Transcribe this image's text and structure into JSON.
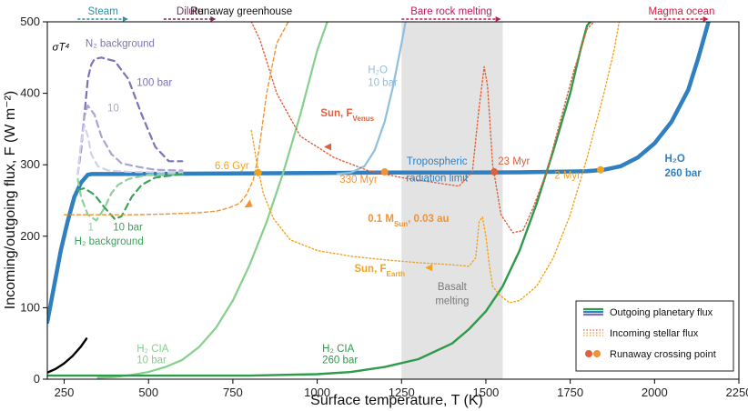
{
  "chart_data": {
    "type": "line",
    "xlabel": "Surface temperature, T (K)",
    "ylabel": "Incoming/outgoing flux, F (W m⁻²)",
    "xlim": [
      200,
      2250
    ],
    "ylim": [
      0,
      500
    ],
    "xticks": [
      250,
      500,
      750,
      1000,
      1250,
      1500,
      1750,
      2000,
      2250
    ],
    "yticks": [
      0,
      100,
      200,
      300,
      400,
      500
    ],
    "shaded_region": {
      "x": [
        1250,
        1550
      ],
      "label_line1": "Basalt",
      "label_line2": "melting",
      "color": "#e3e3e3"
    },
    "regimes": [
      {
        "label": "Steam",
        "x": [
          290,
          440
        ],
        "color": "#2e8fa6",
        "arrow": true
      },
      {
        "label": "Dilute",
        "x": [
          545,
          700
        ],
        "color": "#7b2b5a",
        "arrow": true
      },
      {
        "label": "Runaway greenhouse",
        "x": [
          775,
          775
        ],
        "color": "#111111",
        "arrow": false
      },
      {
        "label": "Bare rock melting",
        "x": [
          1250,
          1545
        ],
        "color": "#c2185b",
        "arrow": true
      },
      {
        "label": "Magma ocean",
        "x": [
          2000,
          2160
        ],
        "color": "#d81b44",
        "arrow": true
      }
    ],
    "series": [
      {
        "name": "sigma-T4",
        "label": "σT⁴",
        "color": "#000000",
        "width": 2.4,
        "dash": "",
        "x": [
          200,
          225,
          250,
          275,
          300,
          316
        ],
        "y": [
          9.1,
          14.5,
          22.1,
          32.4,
          45.9,
          56.8
        ]
      },
      {
        "name": "H2O 260 bar",
        "label": "H₂O 260 bar",
        "color": "#2f7fc1",
        "width": 4.5,
        "dash": "",
        "x": [
          200,
          220,
          240,
          260,
          280,
          300,
          320,
          330,
          400,
          600,
          800,
          1000,
          1200,
          1400,
          1600,
          1800,
          1850,
          1900,
          1950,
          2000,
          2050,
          2100,
          2130,
          2160
        ],
        "y": [
          80,
          130,
          180,
          220,
          255,
          275,
          286,
          287,
          287,
          287.5,
          288,
          288.5,
          289,
          289,
          289.5,
          291,
          293,
          298,
          310,
          330,
          360,
          405,
          450,
          500
        ]
      },
      {
        "name": "H2O 10 bar",
        "label": "H₂O 10 bar",
        "color": "#8fbfdf",
        "width": 2.2,
        "dash": "",
        "x": [
          1060,
          1100,
          1140,
          1170,
          1200,
          1225,
          1250,
          1262
        ],
        "y": [
          287,
          289,
          298,
          320,
          360,
          410,
          470,
          500
        ]
      },
      {
        "name": "H2 CIA 10 bar",
        "label": "H₂ CIA 10 bar",
        "color": "#86cf8c",
        "width": 2.2,
        "dash": "",
        "x": [
          350,
          400,
          450,
          500,
          550,
          600,
          650,
          700,
          750,
          800,
          850,
          900,
          950,
          1000,
          1030
        ],
        "y": [
          2,
          3,
          6,
          10,
          17,
          27,
          45,
          72,
          110,
          160,
          220,
          290,
          370,
          460,
          500
        ]
      },
      {
        "name": "H2 CIA 260 bar",
        "label": "H₂ CIA 260 bar",
        "color": "#2e9a4c",
        "width": 2.4,
        "dash": "",
        "x": [
          200,
          400,
          600,
          800,
          1000,
          1100,
          1200,
          1300,
          1400,
          1450,
          1500,
          1550,
          1600,
          1650,
          1700,
          1750,
          1780,
          1800,
          1810
        ],
        "y": [
          5,
          5,
          5,
          5,
          7,
          10,
          17,
          28,
          50,
          70,
          95,
          130,
          180,
          245,
          320,
          400,
          460,
          495,
          500
        ]
      },
      {
        "name": "N2 100 bar",
        "label": "100 bar",
        "color": "#7b74b6",
        "width": 2.2,
        "dash": "7,5",
        "x": [
          290,
          300,
          310,
          320,
          330,
          340,
          360,
          400,
          440,
          480,
          520,
          560,
          600
        ],
        "y": [
          287,
          320,
          370,
          420,
          440,
          448,
          450,
          445,
          420,
          370,
          325,
          305,
          305
        ]
      },
      {
        "name": "N2 10 bar",
        "label": "10",
        "color": "#a8a4d4",
        "width": 2.2,
        "dash": "7,5",
        "x": [
          290,
          300,
          310,
          320,
          340,
          360,
          390,
          420,
          470,
          520,
          600
        ],
        "y": [
          287,
          330,
          368,
          383,
          370,
          340,
          315,
          302,
          297,
          293,
          292
        ]
      },
      {
        "name": "N2 1 bar",
        "label": "",
        "color": "#d3d1eb",
        "width": 2.2,
        "dash": "7,5",
        "x": [
          290,
          300,
          310,
          320,
          330,
          350,
          380,
          450,
          600
        ],
        "y": [
          287,
          330,
          355,
          340,
          315,
          298,
          292,
          290,
          289
        ]
      },
      {
        "name": "H2 1 bar",
        "label": "1",
        "color": "#8fd19a",
        "width": 2.2,
        "dash": "7,5",
        "x": [
          290,
          300,
          320,
          345,
          370,
          390,
          410,
          440,
          500,
          600
        ],
        "y": [
          280,
          255,
          230,
          222,
          240,
          260,
          272,
          280,
          286,
          287
        ]
      },
      {
        "name": "H2 10 bar",
        "label": "10 bar",
        "color": "#3aa35a",
        "width": 2.2,
        "dash": "7,5",
        "x": [
          290,
          310,
          340,
          370,
          400,
          420,
          450,
          480,
          520,
          600
        ],
        "y": [
          265,
          267,
          258,
          240,
          224,
          228,
          255,
          272,
          282,
          287
        ]
      },
      {
        "name": "Sun F_Venus",
        "label": "Sun, F_Venus",
        "color": "#e0603a",
        "width": 1.4,
        "dash": "1.5,2.5",
        "x": [
          800,
          830,
          880,
          950,
          1050,
          1150,
          1250,
          1350,
          1420,
          1460,
          1480,
          1495,
          1505,
          1520,
          1545,
          1580,
          1610,
          1640,
          1680,
          1720,
          1760,
          1800,
          1830
        ],
        "y": [
          505,
          475,
          400,
          340,
          310,
          292,
          282,
          275,
          270,
          290,
          380,
          437,
          410,
          300,
          230,
          205,
          208,
          240,
          290,
          360,
          430,
          490,
          505
        ]
      },
      {
        "name": "0.1 Msun 0.03 au",
        "label": "0.1 M_Sun, 0.03 au",
        "color": "#f29230",
        "width": 1.4,
        "dash": "4,3",
        "x": [
          250,
          350,
          450,
          550,
          650,
          700,
          740,
          770,
          790,
          810,
          820,
          830,
          850,
          880,
          920
        ],
        "y": [
          230,
          230,
          230,
          231,
          233,
          235,
          240,
          246,
          258,
          278,
          300,
          330,
          400,
          470,
          505
        ]
      },
      {
        "name": "Sun F_Earth",
        "label": "Sun, F_Earth",
        "color": "#f2a31e",
        "width": 1.4,
        "dash": "1.5,2.5",
        "x": [
          805,
          820,
          840,
          870,
          920,
          1000,
          1100,
          1200,
          1300,
          1400,
          1450,
          1470,
          1480,
          1490,
          1500,
          1510,
          1520,
          1540,
          1570,
          1600,
          1650,
          1700,
          1750,
          1800,
          1850,
          1880,
          1895
        ],
        "y": [
          348,
          305,
          260,
          225,
          195,
          180,
          172,
          167,
          163,
          160,
          158,
          170,
          220,
          227,
          200,
          160,
          130,
          118,
          107,
          110,
          130,
          170,
          230,
          310,
          400,
          460,
          500
        ]
      }
    ],
    "runaway_points": [
      {
        "x": 1840,
        "y": 293,
        "label": "2 Myr",
        "color": "#f2a31e"
      },
      {
        "x": 1525,
        "y": 290,
        "label": "23 Myr",
        "color": "#e0603a"
      },
      {
        "x": 1200,
        "y": 290,
        "label": "330 Myr",
        "color": "#f29230"
      },
      {
        "x": 825,
        "y": 289,
        "label": "6.6 Gyr",
        "color": "#f2a31e"
      }
    ],
    "annotations": [
      {
        "text": "σT⁴",
        "x": 215,
        "y": 460,
        "color": "#000000"
      },
      {
        "text": "N₂ background",
        "x": 313,
        "y": 465,
        "color": "#7b74b6"
      },
      {
        "text": "100 bar",
        "x": 465,
        "y": 410,
        "color": "#7b74b6"
      },
      {
        "text": "10",
        "x": 378,
        "y": 375,
        "color": "#a8a4d4"
      },
      {
        "text": "1",
        "x": 320,
        "y": 208,
        "color": "#8fd19a"
      },
      {
        "text": "10 bar",
        "x": 395,
        "y": 208,
        "color": "#3aa35a"
      },
      {
        "text": "H₂ background",
        "x": 280,
        "y": 188,
        "color": "#3aa35a"
      },
      {
        "text": "H₂O",
        "x": 1150,
        "y": 428,
        "color": "#8fbfdf"
      },
      {
        "text": "10 bar",
        "x": 1150,
        "y": 410,
        "color": "#8fbfdf"
      },
      {
        "text": "Sun, F_Venus",
        "x": 1010,
        "y": 368,
        "color": "#e0603a"
      },
      {
        "text": "Tropospheric",
        "x": 1355,
        "y": 300,
        "color": "#2f7fc1"
      },
      {
        "text": "radiation limit",
        "x": 1355,
        "y": 277,
        "color": "#2f7fc1"
      },
      {
        "text": "H₂O",
        "x": 2030,
        "y": 304,
        "color": "#2f7fc1"
      },
      {
        "text": "260 bar",
        "x": 2030,
        "y": 284,
        "color": "#2f7fc1"
      },
      {
        "text": "0.1 M_Sun, 0.03 au",
        "x": 1150,
        "y": 220,
        "color": "#f29230"
      },
      {
        "text": "Sun, F_Earth",
        "x": 1110,
        "y": 150,
        "color": "#f2a31e"
      },
      {
        "text": "Basalt",
        "x": 1400,
        "y": 125,
        "color": "#7a7a7a"
      },
      {
        "text": "melting",
        "x": 1400,
        "y": 105,
        "color": "#7a7a7a"
      },
      {
        "text": "H₂ CIA",
        "x": 465,
        "y": 38,
        "color": "#86cf8c"
      },
      {
        "text": "10 bar",
        "x": 465,
        "y": 22,
        "color": "#86cf8c"
      },
      {
        "text": "H₂ CIA",
        "x": 1015,
        "y": 38,
        "color": "#2e9a4c"
      },
      {
        "text": "260 bar",
        "x": 1015,
        "y": 22,
        "color": "#2e9a4c"
      }
    ],
    "legend": {
      "location": "bottom-right",
      "entries": [
        {
          "label": "Outgoing planetary flux",
          "kind": "lines",
          "colors": [
            "#2e9a4c",
            "#2f7fc1",
            "#7b74b6"
          ]
        },
        {
          "label": "Incoming stellar flux",
          "kind": "dotted",
          "colors": [
            "#e0603a",
            "#f29230",
            "#f2a31e"
          ]
        },
        {
          "label": "Runaway crossing point",
          "kind": "dots",
          "colors": [
            "#e0603a",
            "#f29230"
          ]
        }
      ]
    }
  }
}
